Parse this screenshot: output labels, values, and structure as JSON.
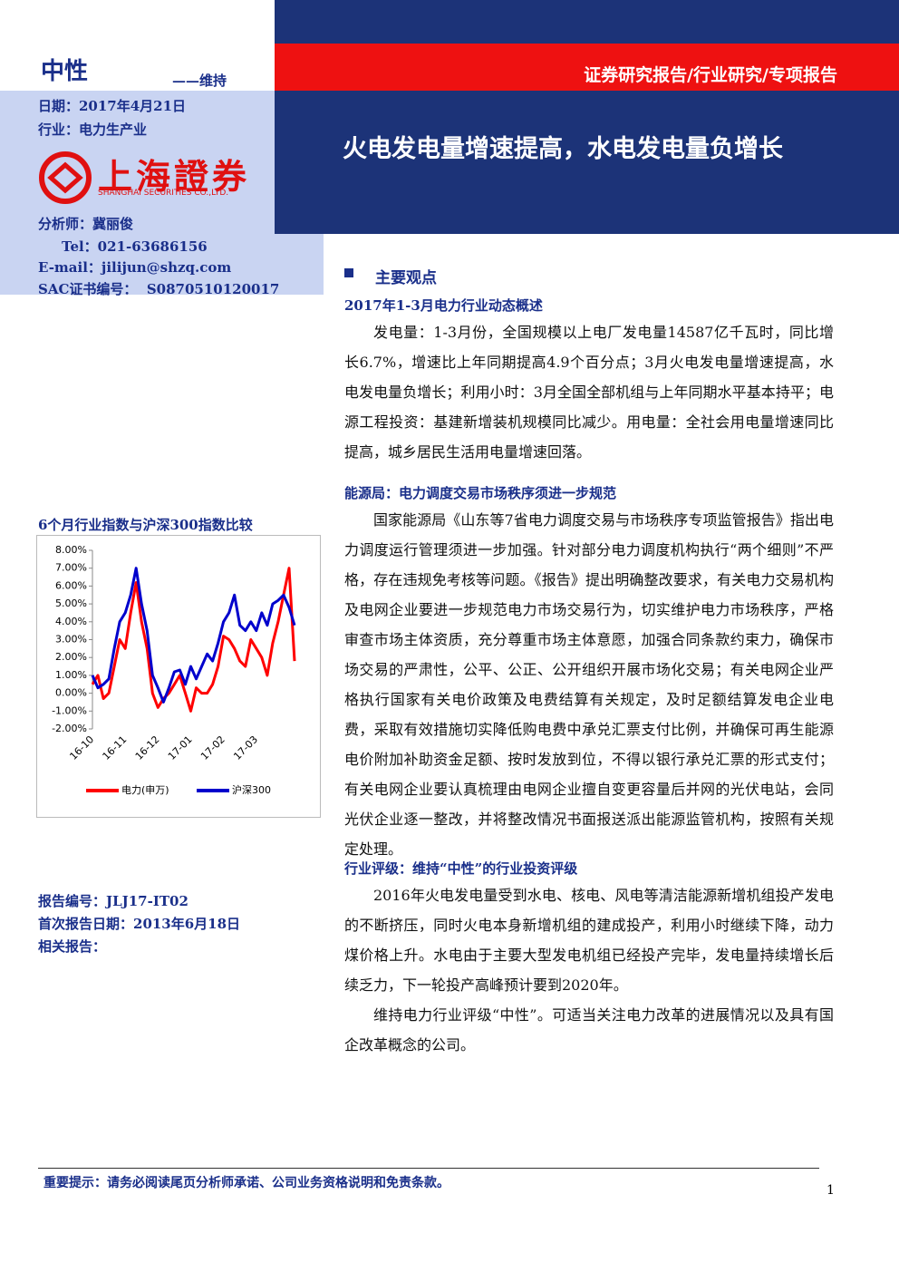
{
  "header": {
    "rating": "中性",
    "rating_action": "——维持",
    "date": "日期：2017年4月21日",
    "industry": "行业：电力生产业",
    "report_type": "证券研究报告/行业研究/专项报告",
    "title": "火电发电量增速提高，水电发电量负增长"
  },
  "logo": {
    "name": "上海證券",
    "name_en": "SHANGHAI SECURITIES CO.,LTD."
  },
  "analyst": {
    "name": "分析师：冀丽俊",
    "tel": "Tel：021-63686156",
    "email": "E-mail：jilijun@shzq.com",
    "sac": "SAC证书编号：  S0870510120017"
  },
  "sidebar": {
    "chart_title": "6个月行业指数与沪深300指数比较",
    "report_no": "报告编号：JLJ17-IT02",
    "first_date": "首次报告日期：2013年6月18日",
    "related": "相关报告："
  },
  "main": {
    "heading": "主要观点",
    "sections": [
      {
        "title": "2017年1-3月电力行业动态概述",
        "paragraphs": [
          "发电量：1-3月份，全国规模以上电厂发电量14587亿千瓦时，同比增长6.7%，增速比上年同期提高4.9个百分点；3月火电发电量增速提高，水电发电量负增长；利用小时：3月全国全部机组与上年同期水平基本持平；电源工程投资：基建新增装机规模同比减少。用电量：全社会用电量增速同比提高，城乡居民生活用电量增速回落。"
        ]
      },
      {
        "title": "能源局：电力调度交易市场秩序须进一步规范",
        "paragraphs": [
          "国家能源局《山东等7省电力调度交易与市场秩序专项监管报告》指出电力调度运行管理须进一步加强。针对部分电力调度机构执行“两个细则”不严格，存在违规免考核等问题。《报告》提出明确整改要求，有关电力交易机构及电网企业要进一步规范电力市场交易行为，切实维护电力市场秩序，严格审查市场主体资质，充分尊重市场主体意愿，加强合同条款约束力，确保市场交易的严肃性，公平、公正、公开组织开展市场化交易；有关电网企业严格执行国家有关电价政策及电费结算有关规定，及时足额结算发电企业电费，采取有效措施切实降低购电费中承兑汇票支付比例，并确保可再生能源电价附加补助资金足额、按时发放到位，不得以银行承兑汇票的形式支付；有关电网企业要认真梳理由电网企业擅自变更容量后并网的光伏电站，会同光伏企业逐一整改，并将整改情况书面报送派出能源监管机构，按照有关规定处理。"
        ]
      },
      {
        "title": "行业评级：维持“中性”的行业投资评级",
        "paragraphs": [
          "2016年火电发电量受到水电、核电、风电等清洁能源新增机组投产发电的不断挤压，同时火电本身新增机组的建成投产，利用小时继续下降，动力煤价格上升。水电由于主要大型发电机组已经投产完毕，发电量持续增长后续乏力，下一轮投产高峰预计要到2020年。",
          "维持电力行业评级“中性”。可适当关注电力改革的进展情况以及具有国企改革概念的公司。"
        ]
      }
    ]
  },
  "footer": {
    "notice": "重要提示：请务必阅读尾页分析师承诺、公司业务资格说明和免责条款。",
    "page": "1"
  },
  "chart_data": {
    "type": "line",
    "categories": [
      "16-10",
      null,
      null,
      null,
      null,
      null,
      "16-11",
      null,
      null,
      null,
      null,
      null,
      "16-12",
      null,
      null,
      null,
      null,
      null,
      "17-01",
      null,
      null,
      null,
      null,
      null,
      "17-02",
      null,
      null,
      null,
      null,
      null,
      "17-03",
      null,
      null,
      null,
      null,
      null,
      null,
      null
    ],
    "series": [
      {
        "name": "电力(申万)",
        "color": "#ff0000",
        "values": [
          0.5,
          1.0,
          -0.3,
          0.0,
          1.5,
          3.0,
          2.5,
          4.5,
          6.2,
          4.0,
          2.5,
          0.0,
          -0.8,
          -0.3,
          0.0,
          0.5,
          1.0,
          0.0,
          -1.0,
          0.3,
          0.0,
          0.0,
          0.5,
          1.5,
          3.2,
          3.0,
          2.5,
          1.8,
          1.5,
          3.0,
          2.5,
          2.0,
          1.0,
          2.8,
          4.0,
          5.5,
          7.0,
          1.8
        ]
      },
      {
        "name": "沪深300",
        "color": "#0000cc",
        "values": [
          1.0,
          0.3,
          0.5,
          0.8,
          2.5,
          4.0,
          4.5,
          5.5,
          7.0,
          5.0,
          3.5,
          1.0,
          0.3,
          -0.5,
          0.3,
          1.2,
          1.3,
          0.5,
          1.5,
          0.8,
          1.5,
          2.2,
          1.8,
          2.8,
          4.0,
          4.5,
          5.5,
          3.8,
          3.5,
          4.0,
          3.5,
          4.5,
          3.8,
          5.0,
          5.2,
          5.5,
          4.8,
          3.8
        ]
      }
    ],
    "ylim": [
      -2,
      8
    ],
    "yticks": [
      {
        "value": -2,
        "label": "-2.00%"
      },
      {
        "value": -1,
        "label": "-1.00%"
      },
      {
        "value": 0,
        "label": "0.00%"
      },
      {
        "value": 1,
        "label": "1.00%"
      },
      {
        "value": 2,
        "label": "2.00%"
      },
      {
        "value": 3,
        "label": "3.00%"
      },
      {
        "value": 4,
        "label": "4.00%"
      },
      {
        "value": 5,
        "label": "5.00%"
      },
      {
        "value": 6,
        "label": "6.00%"
      },
      {
        "value": 7,
        "label": "7.00%"
      },
      {
        "value": 8,
        "label": "8.00%"
      }
    ],
    "legend": "bottom"
  }
}
